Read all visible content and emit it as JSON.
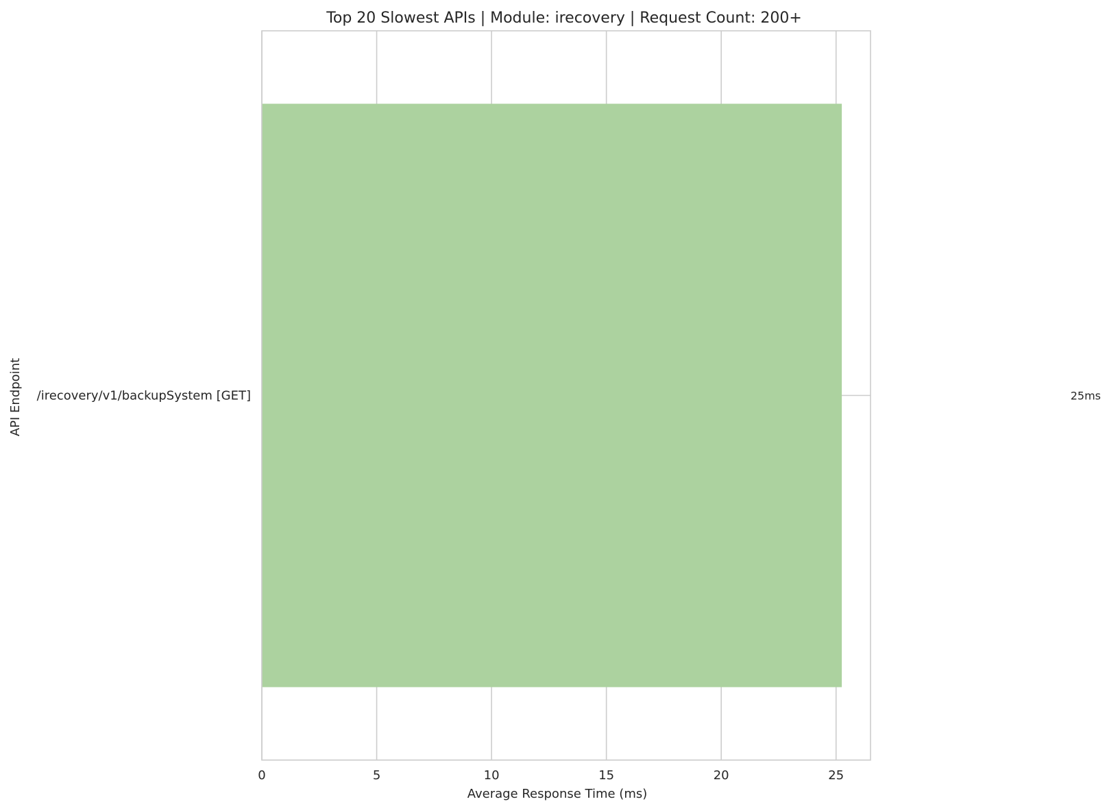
{
  "chart_data": {
    "type": "bar",
    "orientation": "horizontal",
    "title": "Top 20 Slowest APIs | Module: irecovery | Request Count: 200+",
    "xlabel": "Average Response Time (ms)",
    "ylabel": "API Endpoint",
    "categories": [
      "/irecovery/v1/backupSystem [GET]"
    ],
    "values": [
      25.25
    ],
    "data_labels": [
      "25ms"
    ],
    "xlim": [
      0,
      26.5
    ],
    "xticks": [
      0,
      5,
      10,
      15,
      20,
      25
    ],
    "grid": true,
    "legend": "none",
    "colors": {
      "bar": "#acd29f",
      "grid": "#cccccc",
      "spine": "#cccccc",
      "text": "#262626"
    }
  }
}
